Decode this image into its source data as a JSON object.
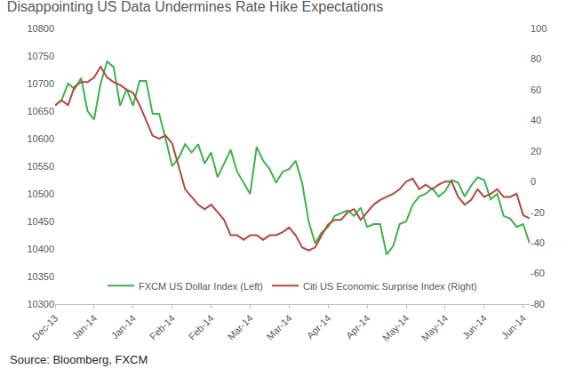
{
  "chart_data": {
    "type": "line",
    "title": "Disappointing US Data Undermines Rate Hike Expectations",
    "annotations": [
      "Source: Bloomberg, FXCM"
    ],
    "categories": [
      "Dec-13",
      null,
      null,
      null,
      null,
      null,
      "Jan-14",
      null,
      null,
      null,
      null,
      null,
      "Jan-14",
      null,
      null,
      null,
      null,
      null,
      "Feb-14",
      null,
      null,
      null,
      null,
      null,
      "Feb-14",
      null,
      null,
      null,
      null,
      null,
      "Mar-14",
      null,
      null,
      null,
      null,
      null,
      "Mar-14",
      null,
      null,
      null,
      null,
      null,
      "Apr-14",
      null,
      null,
      null,
      null,
      null,
      "Apr-14",
      null,
      null,
      null,
      null,
      null,
      "May-14",
      null,
      null,
      null,
      null,
      null,
      "May-14",
      null,
      null,
      null,
      null,
      null,
      "Jun-14",
      null,
      null,
      null,
      null,
      null,
      "Jun-14",
      null
    ],
    "series": [
      {
        "name": "FXCM US Dollar Index (Left)",
        "color": "#3cb34a",
        "values": [
          10660,
          10670,
          10700,
          10690,
          10710,
          10650,
          10635,
          10700,
          10740,
          10730,
          10660,
          10690,
          10660,
          10705,
          10705,
          10645,
          10645,
          10600,
          10550,
          10565,
          10590,
          10575,
          10590,
          10555,
          10575,
          10530,
          10555,
          10580,
          10540,
          10520,
          10500,
          10585,
          10560,
          10545,
          10520,
          10540,
          10545,
          10560,
          10520,
          10450,
          10410,
          10430,
          10440,
          10460,
          10465,
          10470,
          10460,
          10475,
          10440,
          10445,
          10445,
          10390,
          10405,
          10445,
          10450,
          10480,
          10495,
          10500,
          10510,
          10495,
          10505,
          10525,
          10520,
          10495,
          10515,
          10530,
          10525,
          10490,
          10500,
          10460,
          10455,
          10440,
          10445,
          10410
        ]
      },
      {
        "name": "Citi US Economic Surprise Index (Right)",
        "color": "#b5463f",
        "axis": "y2",
        "values": [
          50,
          53,
          50,
          62,
          65,
          65,
          68,
          75,
          68,
          65,
          63,
          60,
          58,
          50,
          40,
          30,
          28,
          30,
          25,
          10,
          -5,
          -10,
          -15,
          -18,
          -15,
          -20,
          -25,
          -35,
          -35,
          -38,
          -35,
          -35,
          -38,
          -35,
          -35,
          -33,
          -30,
          -35,
          -43,
          -45,
          -43,
          -35,
          -28,
          -25,
          -25,
          -20,
          -18,
          -25,
          -20,
          -15,
          -12,
          -10,
          -8,
          -5,
          0,
          2,
          -5,
          -2,
          -5,
          -2,
          0,
          0,
          -10,
          -15,
          -12,
          -5,
          -10,
          -8,
          -5,
          -10,
          -10,
          -8,
          -22,
          -24
        ]
      }
    ],
    "ylim": [
      10300,
      10800
    ],
    "yticks": [
      10300,
      10350,
      10400,
      10450,
      10500,
      10550,
      10600,
      10650,
      10700,
      10750,
      10800
    ],
    "y2lim": [
      -80,
      100
    ],
    "y2ticks": [
      -80,
      -60,
      -40,
      -20,
      0,
      20,
      40,
      60,
      80,
      100
    ],
    "grid": false,
    "legend": "bottom"
  }
}
